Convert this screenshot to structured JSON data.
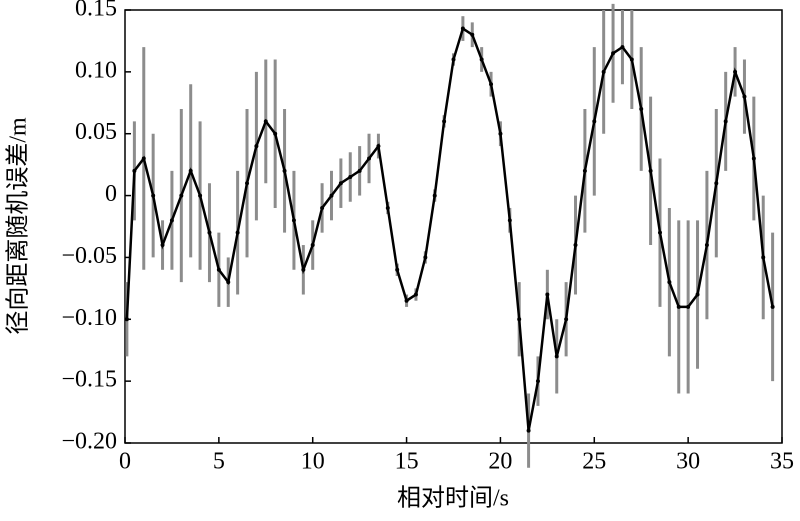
{
  "chart_data": {
    "type": "errorbar-line",
    "xlabel": "相对时间/s",
    "ylabel": "径向距离随机误差/m",
    "x": [
      0.1,
      0.5,
      1.0,
      1.5,
      2.0,
      2.5,
      3.0,
      3.5,
      4.0,
      4.5,
      5.0,
      5.5,
      6.0,
      6.5,
      7.0,
      7.5,
      8.0,
      8.5,
      9.0,
      9.5,
      10.0,
      10.5,
      11.0,
      11.5,
      12.0,
      12.5,
      13.0,
      13.5,
      14.0,
      14.5,
      15.0,
      15.5,
      16.0,
      16.5,
      17.0,
      17.5,
      18.0,
      18.5,
      19.0,
      19.5,
      20.0,
      20.5,
      21.0,
      21.5,
      22.0,
      22.5,
      23.0,
      23.5,
      24.0,
      24.5,
      25.0,
      25.5,
      26.0,
      26.5,
      27.0,
      27.5,
      28.0,
      28.5,
      29.0,
      29.5,
      30.0,
      30.5,
      31.0,
      31.5,
      32.0,
      32.5,
      33.0,
      33.5,
      34.0,
      34.5
    ],
    "series": [
      {
        "color": "#000000",
        "error_color": "#8c8c8c",
        "values": [
          -0.1,
          0.02,
          0.03,
          0.0,
          -0.04,
          -0.02,
          0.0,
          0.02,
          0.0,
          -0.03,
          -0.06,
          -0.07,
          -0.03,
          0.01,
          0.04,
          0.06,
          0.05,
          0.02,
          -0.02,
          -0.06,
          -0.04,
          -0.01,
          0.0,
          0.01,
          0.015,
          0.02,
          0.03,
          0.04,
          -0.01,
          -0.06,
          -0.085,
          -0.08,
          -0.05,
          0.0,
          0.06,
          0.11,
          0.135,
          0.13,
          0.11,
          0.09,
          0.05,
          -0.02,
          -0.1,
          -0.19,
          -0.15,
          -0.08,
          -0.13,
          -0.1,
          -0.04,
          0.02,
          0.06,
          0.1,
          0.115,
          0.12,
          0.11,
          0.07,
          0.02,
          -0.03,
          -0.07,
          -0.09,
          -0.09,
          -0.08,
          -0.04,
          0.01,
          0.06,
          0.1,
          0.08,
          0.03,
          -0.05,
          -0.09
        ],
        "errors": [
          0.03,
          0.04,
          0.09,
          0.05,
          0.02,
          0.04,
          0.07,
          0.07,
          0.06,
          0.04,
          0.03,
          0.02,
          0.05,
          0.06,
          0.06,
          0.05,
          0.06,
          0.05,
          0.04,
          0.02,
          0.02,
          0.02,
          0.02,
          0.02,
          0.02,
          0.02,
          0.02,
          0.01,
          0.005,
          0.005,
          0.005,
          0.005,
          0.005,
          0.005,
          0.005,
          0.005,
          0.01,
          0.01,
          0.01,
          0.01,
          0.01,
          0.01,
          0.03,
          0.03,
          0.02,
          0.02,
          0.03,
          0.03,
          0.04,
          0.05,
          0.06,
          0.05,
          0.04,
          0.03,
          0.04,
          0.05,
          0.06,
          0.06,
          0.06,
          0.07,
          0.07,
          0.06,
          0.06,
          0.06,
          0.04,
          0.02,
          0.03,
          0.05,
          0.05,
          0.06
        ]
      }
    ],
    "xlim": [
      0,
      35
    ],
    "xticks": [
      0,
      5,
      10,
      15,
      20,
      25,
      30,
      35
    ],
    "ylim": [
      -0.2,
      0.15
    ],
    "yticks": [
      {
        "value": -0.2,
        "label": "−0.20"
      },
      {
        "value": -0.15,
        "label": "−0.15"
      },
      {
        "value": -0.1,
        "label": "−0.10"
      },
      {
        "value": -0.05,
        "label": "−0.05"
      },
      0,
      0.05,
      {
        "value": 0.1,
        "label": "0.10"
      },
      0.15
    ],
    "grid": false
  }
}
